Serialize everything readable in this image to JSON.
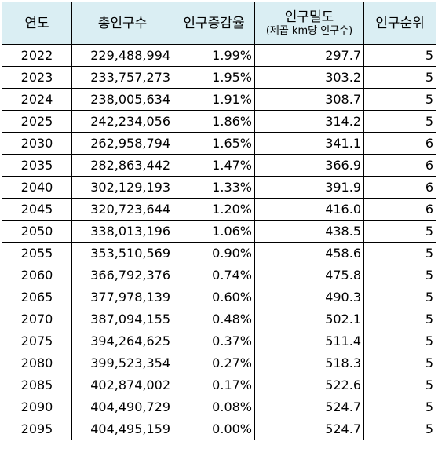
{
  "headers": {
    "year": "연도",
    "total_population": "총인구수",
    "growth_rate": "인구증감율",
    "density": "인구밀도",
    "density_unit": "(제곱 km당 인구수)",
    "rank": "인구순위"
  },
  "rows": [
    {
      "year": "2022",
      "population": "229,488,994",
      "growth": "1.99%",
      "density": "297.7",
      "rank": "5"
    },
    {
      "year": "2023",
      "population": "233,757,273",
      "growth": "1.95%",
      "density": "303.2",
      "rank": "5"
    },
    {
      "year": "2024",
      "population": "238,005,634",
      "growth": "1.91%",
      "density": "308.7",
      "rank": "5"
    },
    {
      "year": "2025",
      "population": "242,234,056",
      "growth": "1.86%",
      "density": "314.2",
      "rank": "5"
    },
    {
      "year": "2030",
      "population": "262,958,794",
      "growth": "1.65%",
      "density": "341.1",
      "rank": "6"
    },
    {
      "year": "2035",
      "population": "282,863,442",
      "growth": "1.47%",
      "density": "366.9",
      "rank": "6"
    },
    {
      "year": "2040",
      "population": "302,129,193",
      "growth": "1.33%",
      "density": "391.9",
      "rank": "6"
    },
    {
      "year": "2045",
      "population": "320,723,644",
      "growth": "1.20%",
      "density": "416.0",
      "rank": "6"
    },
    {
      "year": "2050",
      "population": "338,013,196",
      "growth": "1.06%",
      "density": "438.5",
      "rank": "5"
    },
    {
      "year": "2055",
      "population": "353,510,569",
      "growth": "0.90%",
      "density": "458.6",
      "rank": "5"
    },
    {
      "year": "2060",
      "population": "366,792,376",
      "growth": "0.74%",
      "density": "475.8",
      "rank": "5"
    },
    {
      "year": "2065",
      "population": "377,978,139",
      "growth": "0.60%",
      "density": "490.3",
      "rank": "5"
    },
    {
      "year": "2070",
      "population": "387,094,155",
      "growth": "0.48%",
      "density": "502.1",
      "rank": "5"
    },
    {
      "year": "2075",
      "population": "394,264,625",
      "growth": "0.37%",
      "density": "511.4",
      "rank": "5"
    },
    {
      "year": "2080",
      "population": "399,523,354",
      "growth": "0.27%",
      "density": "518.3",
      "rank": "5"
    },
    {
      "year": "2085",
      "population": "402,874,002",
      "growth": "0.17%",
      "density": "522.6",
      "rank": "5"
    },
    {
      "year": "2090",
      "population": "404,490,729",
      "growth": "0.08%",
      "density": "524.7",
      "rank": "5"
    },
    {
      "year": "2095",
      "population": "404,495,159",
      "growth": "0.00%",
      "density": "524.7",
      "rank": "5"
    }
  ],
  "colors": {
    "header_background": "#daeef3",
    "border": "#000000"
  }
}
